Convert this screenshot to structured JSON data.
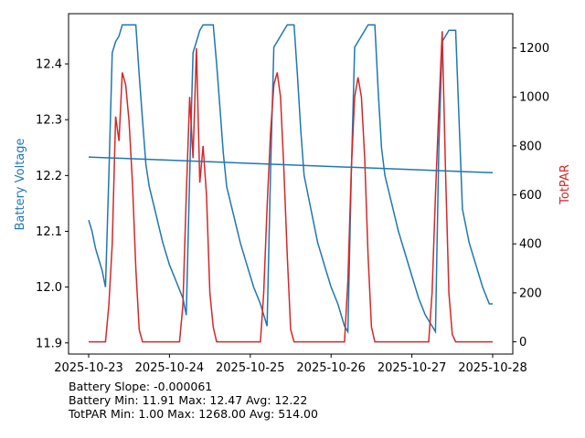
{
  "chart_data": {
    "type": "line",
    "x_ticks": [
      "2025-10-23",
      "2025-10-24",
      "2025-10-25",
      "2025-10-26",
      "2025-10-27",
      "2025-10-28"
    ],
    "ylabel_left": "Battery Voltage",
    "ylabel_right": "TotPAR",
    "ylim_left": [
      11.88,
      12.49
    ],
    "ylim_right": [
      -50,
      1340
    ],
    "yticks_left": [
      "11.9",
      "12.0",
      "12.1",
      "12.2",
      "12.3",
      "12.4"
    ],
    "yticks_right": [
      "0",
      "200",
      "400",
      "600",
      "800",
      "1000",
      "1200"
    ],
    "colors": {
      "battery": "#1f77b4",
      "par": "#d62728"
    },
    "trend": {
      "start": [
        "2025-10-23",
        12.233
      ],
      "end": [
        "2025-10-28",
        12.205
      ]
    },
    "series": [
      {
        "key": "battery",
        "points": [
          [
            "2025-10-23 00:00",
            12.12
          ],
          [
            "2025-10-23 01:00",
            12.1
          ],
          [
            "2025-10-23 02:00",
            12.07
          ],
          [
            "2025-10-23 03:00",
            12.05
          ],
          [
            "2025-10-23 04:00",
            12.03
          ],
          [
            "2025-10-23 05:00",
            12.0
          ],
          [
            "2025-10-23 06:00",
            12.2
          ],
          [
            "2025-10-23 07:00",
            12.42
          ],
          [
            "2025-10-23 08:00",
            12.44
          ],
          [
            "2025-10-23 09:00",
            12.45
          ],
          [
            "2025-10-23 10:00",
            12.47
          ],
          [
            "2025-10-23 14:00",
            12.47
          ],
          [
            "2025-10-23 15:00",
            12.38
          ],
          [
            "2025-10-23 16:00",
            12.3
          ],
          [
            "2025-10-23 17:00",
            12.22
          ],
          [
            "2025-10-23 18:00",
            12.18
          ],
          [
            "2025-10-23 20:00",
            12.13
          ],
          [
            "2025-10-23 22:00",
            12.08
          ],
          [
            "2025-10-24 00:00",
            12.04
          ],
          [
            "2025-10-24 02:00",
            12.01
          ],
          [
            "2025-10-24 04:00",
            11.98
          ],
          [
            "2025-10-24 05:00",
            11.95
          ],
          [
            "2025-10-24 06:00",
            12.2
          ],
          [
            "2025-10-24 07:00",
            12.42
          ],
          [
            "2025-10-24 08:00",
            12.44
          ],
          [
            "2025-10-24 09:00",
            12.46
          ],
          [
            "2025-10-24 10:00",
            12.47
          ],
          [
            "2025-10-24 13:00",
            12.47
          ],
          [
            "2025-10-24 14:00",
            12.4
          ],
          [
            "2025-10-24 15:00",
            12.32
          ],
          [
            "2025-10-24 16:00",
            12.24
          ],
          [
            "2025-10-24 17:00",
            12.18
          ],
          [
            "2025-10-24 19:00",
            12.13
          ],
          [
            "2025-10-24 21:00",
            12.08
          ],
          [
            "2025-10-24 23:00",
            12.04
          ],
          [
            "2025-10-25 01:00",
            12.0
          ],
          [
            "2025-10-25 03:00",
            11.97
          ],
          [
            "2025-10-25 05:00",
            11.93
          ],
          [
            "2025-10-25 06:00",
            12.2
          ],
          [
            "2025-10-25 07:00",
            12.43
          ],
          [
            "2025-10-25 09:00",
            12.45
          ],
          [
            "2025-10-25 11:00",
            12.47
          ],
          [
            "2025-10-25 13:00",
            12.47
          ],
          [
            "2025-10-25 14:00",
            12.38
          ],
          [
            "2025-10-25 15:00",
            12.28
          ],
          [
            "2025-10-25 16:00",
            12.2
          ],
          [
            "2025-10-25 18:00",
            12.14
          ],
          [
            "2025-10-25 20:00",
            12.08
          ],
          [
            "2025-10-25 22:00",
            12.04
          ],
          [
            "2025-10-26 00:00",
            12.0
          ],
          [
            "2025-10-26 02:00",
            11.97
          ],
          [
            "2025-10-26 04:00",
            11.93
          ],
          [
            "2025-10-26 05:00",
            11.92
          ],
          [
            "2025-10-26 06:00",
            12.2
          ],
          [
            "2025-10-26 07:00",
            12.43
          ],
          [
            "2025-10-26 09:00",
            12.45
          ],
          [
            "2025-10-26 11:00",
            12.47
          ],
          [
            "2025-10-26 13:00",
            12.47
          ],
          [
            "2025-10-26 14:00",
            12.35
          ],
          [
            "2025-10-26 15:00",
            12.25
          ],
          [
            "2025-10-26 16:00",
            12.2
          ],
          [
            "2025-10-26 18:00",
            12.15
          ],
          [
            "2025-10-26 20:00",
            12.1
          ],
          [
            "2025-10-26 22:00",
            12.06
          ],
          [
            "2025-10-27 00:00",
            12.02
          ],
          [
            "2025-10-27 02:00",
            11.98
          ],
          [
            "2025-10-27 04:00",
            11.95
          ],
          [
            "2025-10-27 06:00",
            11.93
          ],
          [
            "2025-10-27 07:00",
            11.92
          ],
          [
            "2025-10-27 08:00",
            12.25
          ],
          [
            "2025-10-27 09:00",
            12.44
          ],
          [
            "2025-10-27 11:00",
            12.46
          ],
          [
            "2025-10-27 13:00",
            12.46
          ],
          [
            "2025-10-27 14:00",
            12.3
          ],
          [
            "2025-10-27 15:00",
            12.14
          ],
          [
            "2025-10-27 17:00",
            12.08
          ],
          [
            "2025-10-27 19:00",
            12.04
          ],
          [
            "2025-10-27 21:00",
            12.0
          ],
          [
            "2025-10-27 23:00",
            11.97
          ],
          [
            "2025-10-28 00:00",
            11.97
          ]
        ]
      },
      {
        "key": "par",
        "points": [
          [
            "2025-10-23 00:00",
            0
          ],
          [
            "2025-10-23 05:00",
            0
          ],
          [
            "2025-10-23 06:00",
            150
          ],
          [
            "2025-10-23 07:00",
            400
          ],
          [
            "2025-10-23 08:00",
            920
          ],
          [
            "2025-10-23 09:00",
            820
          ],
          [
            "2025-10-23 10:00",
            1100
          ],
          [
            "2025-10-23 11:00",
            1050
          ],
          [
            "2025-10-23 12:00",
            900
          ],
          [
            "2025-10-23 13:00",
            650
          ],
          [
            "2025-10-23 14:00",
            300
          ],
          [
            "2025-10-23 15:00",
            50
          ],
          [
            "2025-10-23 16:00",
            0
          ],
          [
            "2025-10-24 02:00",
            0
          ],
          [
            "2025-10-24 03:00",
            0
          ],
          [
            "2025-10-24 04:00",
            150
          ],
          [
            "2025-10-24 05:00",
            600
          ],
          [
            "2025-10-24 06:00",
            1000
          ],
          [
            "2025-10-24 07:00",
            750
          ],
          [
            "2025-10-24 08:00",
            1200
          ],
          [
            "2025-10-24 09:00",
            650
          ],
          [
            "2025-10-24 10:00",
            800
          ],
          [
            "2025-10-24 11:00",
            600
          ],
          [
            "2025-10-24 12:00",
            200
          ],
          [
            "2025-10-24 13:00",
            60
          ],
          [
            "2025-10-24 14:00",
            0
          ],
          [
            "2025-10-25 03:00",
            0
          ],
          [
            "2025-10-25 04:00",
            200
          ],
          [
            "2025-10-25 05:00",
            550
          ],
          [
            "2025-10-25 06:00",
            850
          ],
          [
            "2025-10-25 07:00",
            1050
          ],
          [
            "2025-10-25 08:00",
            1100
          ],
          [
            "2025-10-25 09:00",
            1000
          ],
          [
            "2025-10-25 10:00",
            700
          ],
          [
            "2025-10-25 11:00",
            350
          ],
          [
            "2025-10-25 12:00",
            50
          ],
          [
            "2025-10-25 13:00",
            0
          ],
          [
            "2025-10-26 04:00",
            0
          ],
          [
            "2025-10-26 05:00",
            250
          ],
          [
            "2025-10-26 06:00",
            700
          ],
          [
            "2025-10-26 07:00",
            1000
          ],
          [
            "2025-10-26 08:00",
            1080
          ],
          [
            "2025-10-26 09:00",
            1000
          ],
          [
            "2025-10-26 10:00",
            750
          ],
          [
            "2025-10-26 11:00",
            350
          ],
          [
            "2025-10-26 12:00",
            60
          ],
          [
            "2025-10-26 13:00",
            0
          ],
          [
            "2025-10-27 05:00",
            0
          ],
          [
            "2025-10-27 06:00",
            200
          ],
          [
            "2025-10-27 07:00",
            600
          ],
          [
            "2025-10-27 08:00",
            950
          ],
          [
            "2025-10-27 09:00",
            1268
          ],
          [
            "2025-10-27 10:00",
            700
          ],
          [
            "2025-10-27 11:00",
            200
          ],
          [
            "2025-10-27 12:00",
            30
          ],
          [
            "2025-10-27 13:00",
            0
          ],
          [
            "2025-10-28 00:00",
            0
          ]
        ]
      }
    ]
  },
  "stats": {
    "slope": "Battery Slope: -0.000061",
    "battery": "Battery Min: 11.91 Max: 12.47 Avg: 12.22",
    "totpar": "TotPAR Min: 1.00 Max: 1268.00 Avg: 514.00"
  }
}
